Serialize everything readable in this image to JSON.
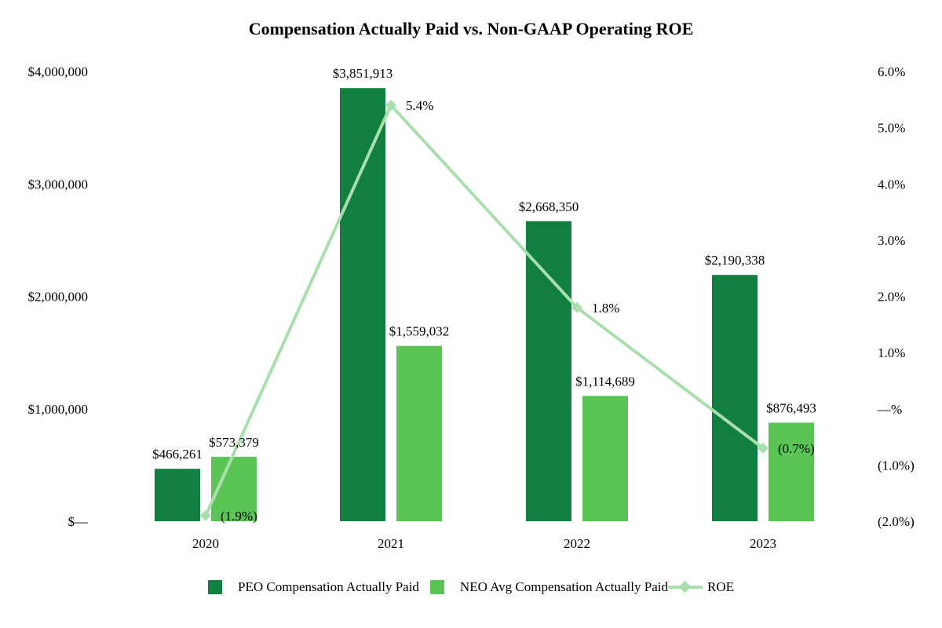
{
  "chart_data": {
    "type": "bar",
    "title": "Compensation Actually Paid vs. Non-GAAP Operating ROE",
    "categories": [
      "2020",
      "2021",
      "2022",
      "2023"
    ],
    "series": [
      {
        "name": "PEO Compensation Actually Paid",
        "kind": "bar",
        "axis": "left",
        "color": "#107f3f",
        "values": [
          466261,
          3851913,
          2668350,
          2190338
        ],
        "labels": [
          "$466,261",
          "$3,851,913",
          "$2,668,350",
          "$2,190,338"
        ]
      },
      {
        "name": "NEO Avg Compensation Actually Paid",
        "kind": "bar",
        "axis": "left",
        "color": "#5ac455",
        "values": [
          573379,
          1559032,
          1114689,
          876493
        ],
        "labels": [
          "$573,379",
          "$1,559,032",
          "$1,114,689",
          "$876,493"
        ]
      },
      {
        "name": "ROE",
        "kind": "line",
        "axis": "right",
        "color": "#a9dfac",
        "values": [
          -1.9,
          5.4,
          1.8,
          -0.7
        ],
        "labels": [
          "(1.9%)",
          "5.4%",
          "1.8%",
          "(0.7%)"
        ]
      }
    ],
    "left_axis": {
      "ylim": [
        0,
        4000000
      ],
      "ticks": [
        0,
        1000000,
        2000000,
        3000000,
        4000000
      ],
      "tick_labels": [
        "$—",
        "$1,000,000",
        "$2,000,000",
        "$3,000,000",
        "$4,000,000"
      ]
    },
    "right_axis": {
      "ylim": [
        -2,
        6
      ],
      "ticks": [
        -2,
        -1,
        0,
        1,
        2,
        3,
        4,
        5,
        6
      ],
      "tick_labels": [
        "(2.0%)",
        "(1.0%)",
        "—%",
        "1.0%",
        "2.0%",
        "3.0%",
        "4.0%",
        "5.0%",
        "6.0%"
      ]
    },
    "grid": false,
    "legend_position": "bottom-center"
  }
}
